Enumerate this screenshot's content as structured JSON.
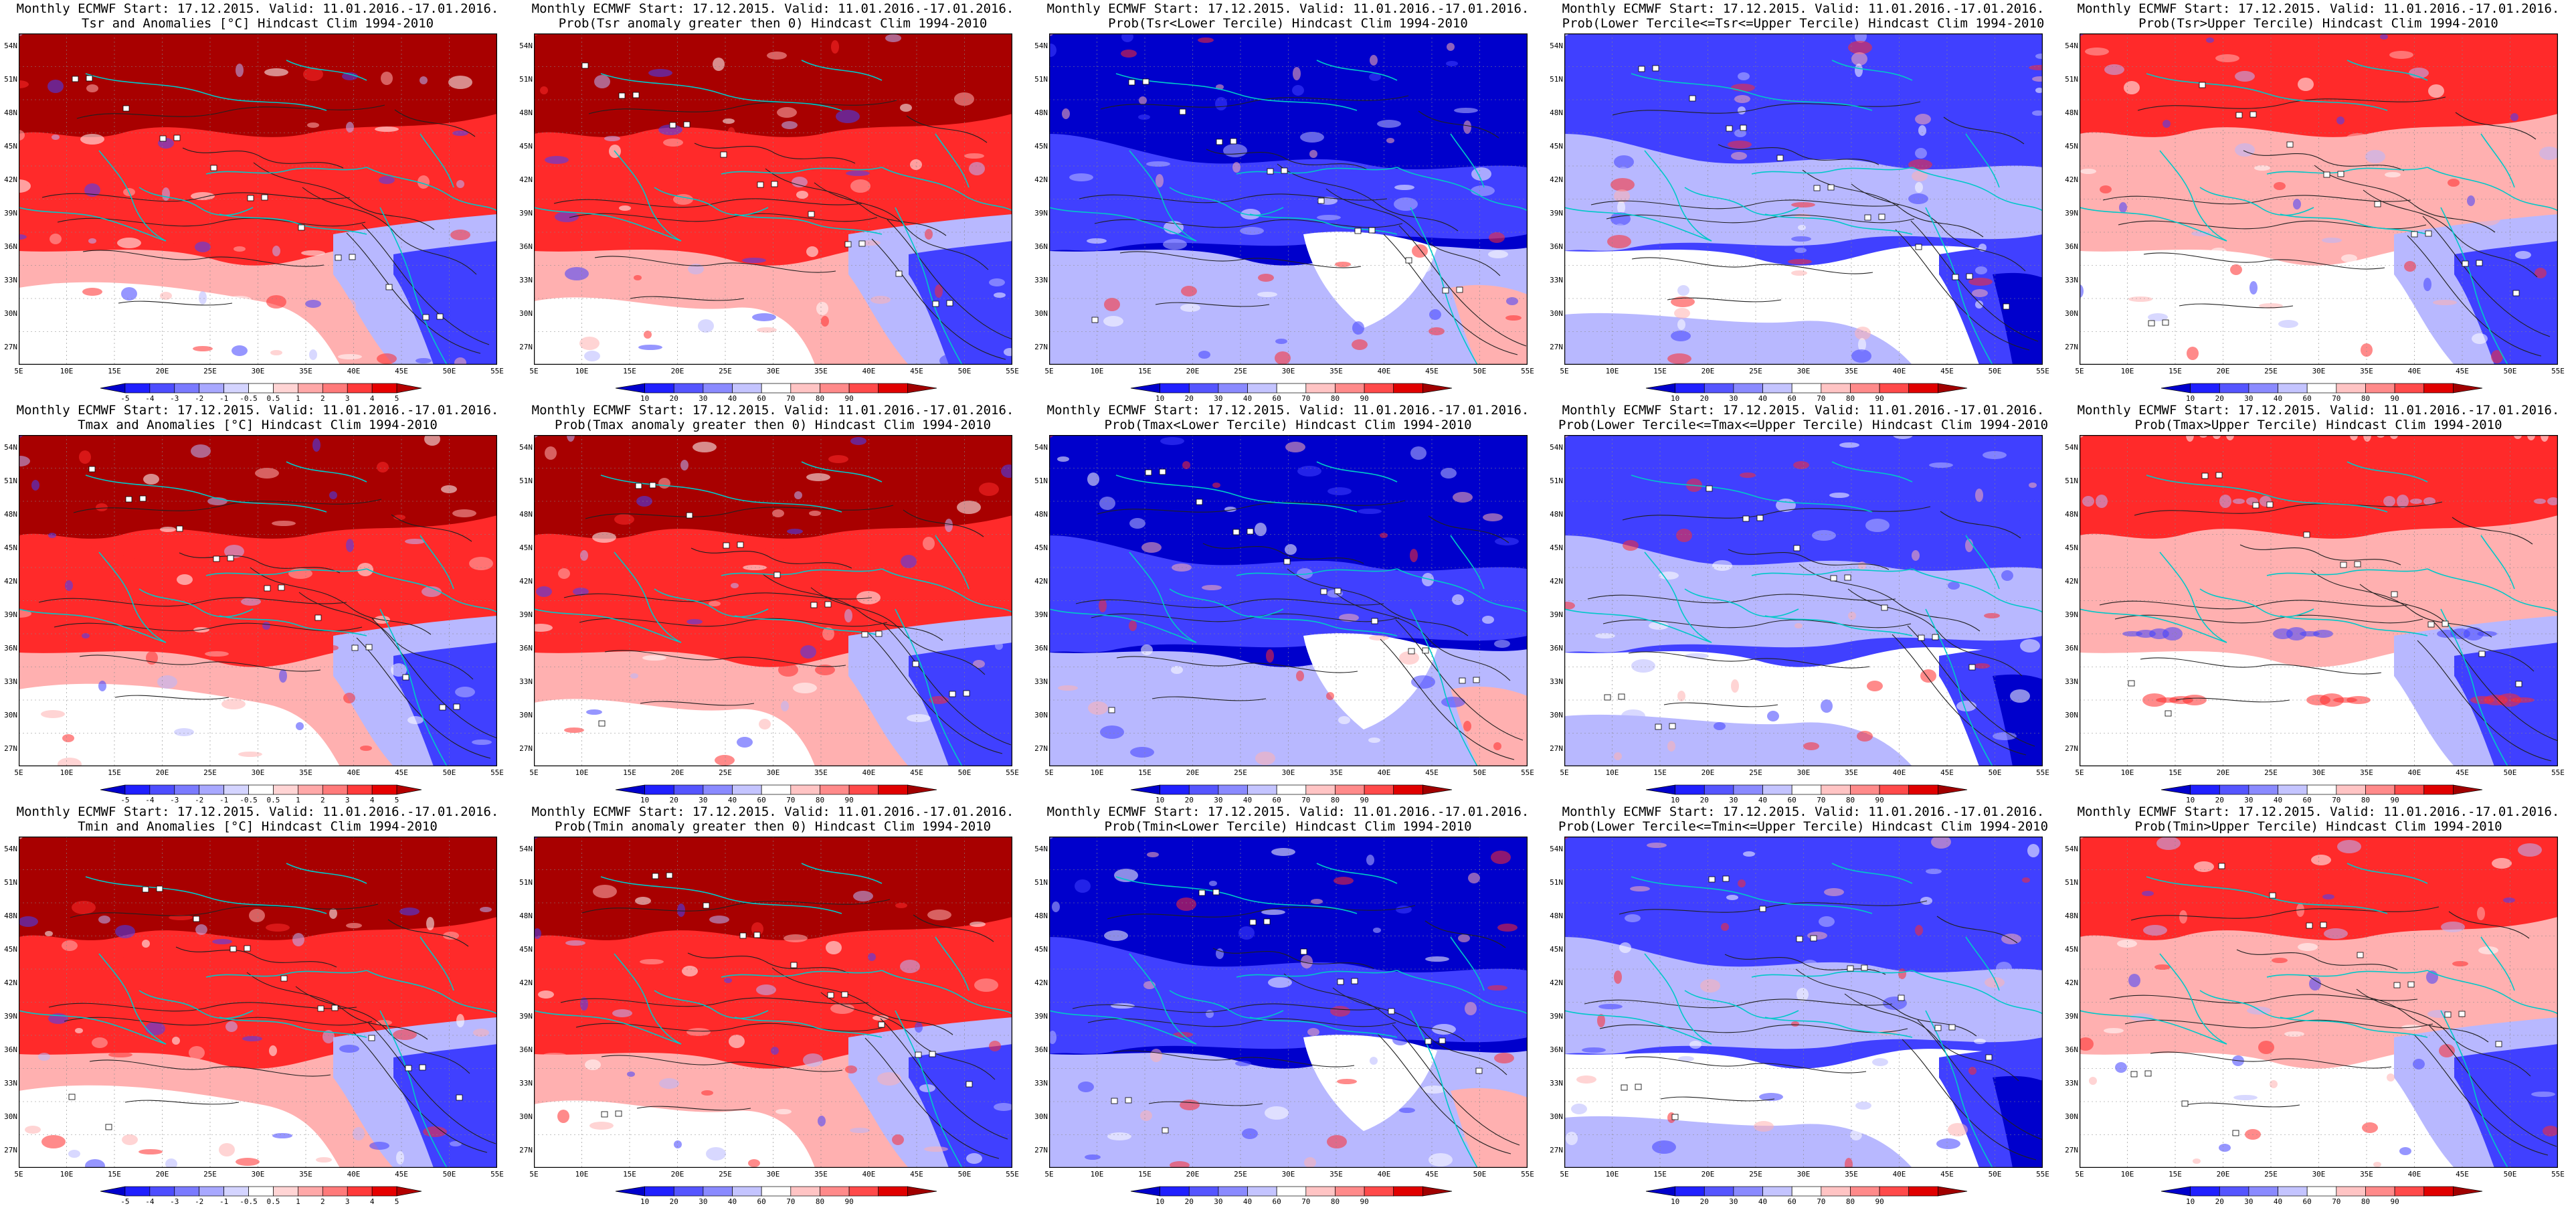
{
  "rows": [
    {
      "variable": "Tsr",
      "panels": [
        {
          "line1": "Monthly ECMWF Start: 17.12.2015. Valid: 11.01.2016.-17.01.2016.",
          "line2": "Tsr and Anomalies [°C] Hindcast Clim 1994-2010",
          "kind": "anomaly"
        },
        {
          "line1": "Monthly ECMWF Start: 17.12.2015. Valid: 11.01.2016.-17.01.2016.",
          "line2": "Prob(Tsr anomaly greater then 0) Hindcast Clim 1994-2010",
          "kind": "probpos"
        },
        {
          "line1": "Monthly ECMWF Start: 17.12.2015. Valid: 11.01.2016.-17.01.2016.",
          "line2": "Prob(Tsr<Lower Tercile) Hindcast Clim 1994-2010",
          "kind": "lower"
        },
        {
          "line1": "Monthly ECMWF Start: 17.12.2015. Valid: 11.01.2016.-17.01.2016.",
          "line2": "Prob(Lower Tercile<=Tsr<=Upper Tercile) Hindcast Clim 1994-2010",
          "kind": "middle"
        },
        {
          "line1": "Monthly ECMWF Start: 17.12.2015. Valid: 11.01.2016.-17.01.2016.",
          "line2": "Prob(Tsr>Upper Tercile) Hindcast Clim 1994-2010",
          "kind": "upper"
        }
      ]
    },
    {
      "variable": "Tmax",
      "panels": [
        {
          "line1": "Monthly ECMWF Start: 17.12.2015. Valid: 11.01.2016.-17.01.2016.",
          "line2": "Tmax and Anomalies [°C] Hindcast Clim 1994-2010",
          "kind": "anomaly"
        },
        {
          "line1": "Monthly ECMWF Start: 17.12.2015. Valid: 11.01.2016.-17.01.2016.",
          "line2": "Prob(Tmax anomaly greater then 0) Hindcast Clim 1994-2010",
          "kind": "probpos"
        },
        {
          "line1": "Monthly ECMWF Start: 17.12.2015. Valid: 11.01.2016.-17.01.2016.",
          "line2": "Prob(Tmax<Lower Tercile) Hindcast Clim 1994-2010",
          "kind": "lower"
        },
        {
          "line1": "Monthly ECMWF Start: 17.12.2015. Valid: 11.01.2016.-17.01.2016.",
          "line2": "Prob(Lower Tercile<=Tmax<=Upper Tercile) Hindcast Clim 1994-2010",
          "kind": "middle"
        },
        {
          "line1": "Monthly ECMWF Start: 17.12.2015. Valid: 11.01.2016.-17.01.2016.",
          "line2": "Prob(Tmax>Upper Tercile) Hindcast Clim 1994-2010",
          "kind": "upper"
        }
      ]
    },
    {
      "variable": "Tmin",
      "panels": [
        {
          "line1": "Monthly ECMWF Start: 17.12.2015. Valid: 11.01.2016.-17.01.2016.",
          "line2": "Tmin and Anomalies [°C] Hindcast Clim 1994-2010",
          "kind": "anomaly"
        },
        {
          "line1": "Monthly ECMWF Start: 17.12.2015. Valid: 11.01.2016.-17.01.2016.",
          "line2": "Prob(Tmin anomaly greater then 0) Hindcast Clim 1994-2010",
          "kind": "probpos"
        },
        {
          "line1": "Monthly ECMWF Start: 17.12.2015. Valid: 11.01.2016.-17.01.2016.",
          "line2": "Prob(Tmin<Lower Tercile) Hindcast Clim 1994-2010",
          "kind": "lower"
        },
        {
          "line1": "Monthly ECMWF Start: 17.12.2015. Valid: 11.01.2016.-17.01.2016.",
          "line2": "Prob(Lower Tercile<=Tmin<=Upper Tercile) Hindcast Clim 1994-2010",
          "kind": "middle"
        },
        {
          "line1": "Monthly ECMWF Start: 17.12.2015. Valid: 11.01.2016.-17.01.2016.",
          "line2": "Prob(Tmin>Upper Tercile) Hindcast Clim 1994-2010",
          "kind": "upper"
        }
      ]
    }
  ],
  "lat_labels": [
    "54N",
    "51N",
    "48N",
    "45N",
    "42N",
    "39N",
    "36N",
    "33N",
    "30N",
    "27N"
  ],
  "lon_labels": [
    "5E",
    "10E",
    "15E",
    "20E",
    "25E",
    "30E",
    "35E",
    "40E",
    "45E",
    "50E",
    "55E"
  ],
  "colorbars": {
    "anomaly": {
      "labels": [
        "-5",
        "-4",
        "-3",
        "-2",
        "-1",
        "-0.5",
        "0.5",
        "1",
        "2",
        "3",
        "4",
        "5"
      ],
      "colors": [
        "#0000cc",
        "#1f1fff",
        "#4d4dff",
        "#7a7aff",
        "#a8a8ff",
        "#d4d4ff",
        "#ffffff",
        "#ffd4d4",
        "#ffa8a8",
        "#ff7a7a",
        "#ff3a3a",
        "#e60000",
        "#b30000"
      ]
    },
    "prob": {
      "labels": [
        "10",
        "20",
        "30",
        "40",
        "60",
        "70",
        "80",
        "90"
      ],
      "colors": [
        "#0000cc",
        "#2020ff",
        "#5555ff",
        "#8a8aff",
        "#c4c4ff",
        "#ffffff",
        "#ffc4c4",
        "#ff8a8a",
        "#ff4a4a",
        "#e00000",
        "#a00000"
      ]
    }
  },
  "fill_colors": {
    "deep_red": "#a80000",
    "red": "#ff2a2a",
    "light_red": "#ffb0b0",
    "white": "#ffffff",
    "light_blue": "#b8b8ff",
    "blue": "#4040ff",
    "deep_blue": "#0000cc",
    "coast": "#00c8c8",
    "contour": "#202020"
  }
}
